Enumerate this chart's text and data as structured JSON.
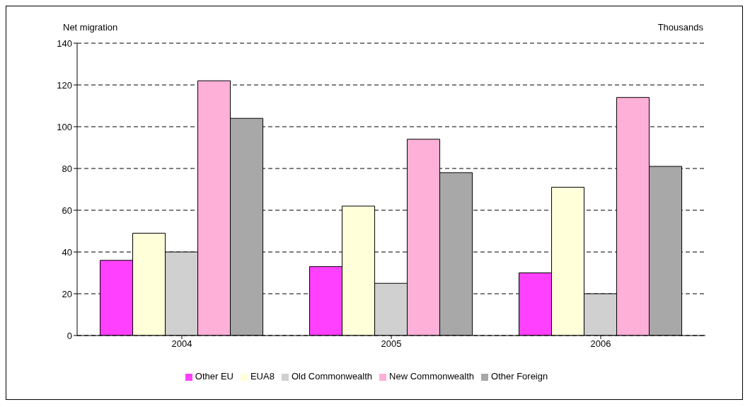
{
  "chart_data": {
    "type": "bar",
    "ylabel": "Net migration",
    "annotations": [
      "Thousands"
    ],
    "categories": [
      "2004",
      "2005",
      "2006"
    ],
    "series": [
      {
        "name": "Other EU",
        "color": "#ff40ff",
        "values": [
          36,
          33,
          30
        ]
      },
      {
        "name": "EUA8",
        "color": "#ffffd9",
        "values": [
          49,
          62,
          71
        ]
      },
      {
        "name": "Old Commonwealth",
        "color": "#d0d0d0",
        "values": [
          40,
          25,
          20
        ]
      },
      {
        "name": "New Commonwealth",
        "color": "#ffb0d8",
        "values": [
          122,
          94,
          114
        ]
      },
      {
        "name": "Other Foreign",
        "color": "#a8a8a8",
        "values": [
          104,
          78,
          81
        ]
      }
    ],
    "ylim": [
      0,
      140
    ],
    "yticks": [
      0,
      20,
      40,
      60,
      80,
      100,
      120,
      140
    ],
    "grid": "y",
    "legend": "bottom"
  }
}
